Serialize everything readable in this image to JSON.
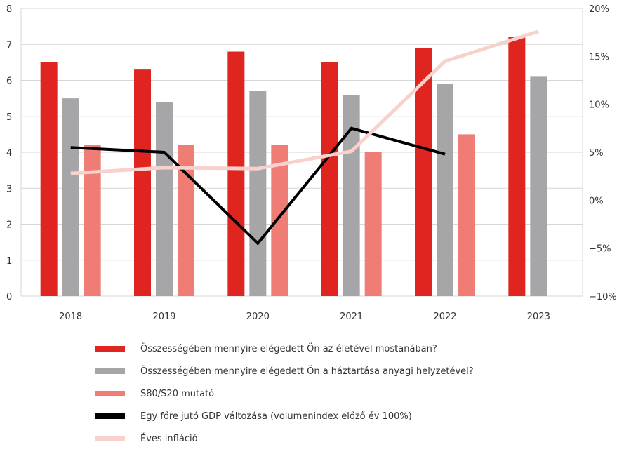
{
  "chart_data": {
    "type": "bar",
    "categories": [
      "2018",
      "2019",
      "2020",
      "2021",
      "2022",
      "2023"
    ],
    "series": [
      {
        "name": "Összességében mennyire elégedett Ön az életével mostanában?",
        "kind": "bar",
        "axis": "left",
        "color": "#e0241f",
        "values": [
          6.5,
          6.3,
          6.8,
          6.5,
          6.9,
          7.2
        ]
      },
      {
        "name": "Összességében mennyire elégedett Ön a háztartása anyagi helyzetével?",
        "kind": "bar",
        "axis": "left",
        "color": "#a6a6a8",
        "values": [
          5.5,
          5.4,
          5.7,
          5.6,
          5.9,
          6.1
        ]
      },
      {
        "name": "S80/S20 mutató",
        "kind": "bar",
        "axis": "left",
        "color": "#ef7d75",
        "values": [
          4.2,
          4.2,
          4.2,
          4.0,
          4.5,
          null
        ]
      },
      {
        "name": "Egy főre jutó GDP változása (volumenindex előző év 100%)",
        "kind": "line",
        "axis": "right",
        "color": "#000000",
        "values": [
          5.5,
          5.0,
          -4.5,
          7.5,
          4.8,
          null
        ]
      },
      {
        "name": "Éves infláció",
        "kind": "line",
        "axis": "right",
        "color": "#f8d0cc",
        "values": [
          2.8,
          3.4,
          3.3,
          5.1,
          14.5,
          17.6
        ]
      }
    ],
    "left_axis": {
      "min": 0,
      "max": 8,
      "ticks": [
        "0",
        "1",
        "2",
        "3",
        "4",
        "5",
        "6",
        "7",
        "8"
      ]
    },
    "right_axis": {
      "min": -10,
      "max": 20,
      "ticks": [
        "−10%",
        "−5%",
        "0%",
        "5%",
        "10%",
        "15%",
        "20%"
      ]
    },
    "grid": true,
    "legend_position": "bottom",
    "title": "",
    "xlabel": "",
    "ylabel": ""
  }
}
